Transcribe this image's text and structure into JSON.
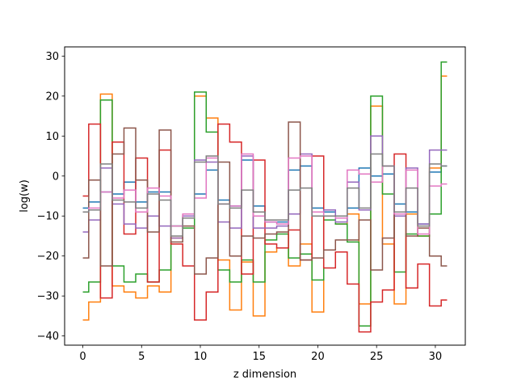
{
  "chart_data": {
    "type": "line",
    "drawstyle": "steps-mid",
    "title": "",
    "xlabel": "z dimension",
    "ylabel": "log(w)",
    "xlim": [
      -1.55,
      32.55
    ],
    "ylim": [
      -42.3,
      32.3
    ],
    "xticks": [
      0,
      5,
      10,
      15,
      20,
      25,
      30
    ],
    "yticks": [
      -40,
      -30,
      -20,
      -10,
      0,
      10,
      20,
      30
    ],
    "grid": false,
    "legend": "none",
    "x": [
      0,
      1,
      2,
      3,
      4,
      5,
      6,
      7,
      8,
      9,
      10,
      11,
      12,
      13,
      14,
      15,
      16,
      17,
      18,
      19,
      20,
      21,
      22,
      23,
      24,
      25,
      26,
      27,
      28,
      29,
      30,
      31
    ],
    "series": [
      {
        "color": "#1f77b4",
        "values": [
          -8,
          -6.5,
          -4,
          -4.5,
          -1.5,
          -6.5,
          -4,
          -4,
          -12.5,
          -10,
          -4.5,
          1.5,
          -6,
          -7.5,
          4,
          -7.5,
          -11.5,
          -11.5,
          1.5,
          2.5,
          -8,
          -9,
          -10.5,
          -8,
          2,
          0,
          0.5,
          -7,
          -9,
          -12,
          1,
          2.5
        ]
      },
      {
        "color": "#ff7f0e",
        "values": [
          -36,
          -31.5,
          20.5,
          -27.5,
          -29,
          -30.5,
          -27.5,
          -29,
          -15.5,
          -10,
          20,
          14.5,
          -21,
          -33.5,
          -21.5,
          -35,
          -19,
          -18,
          -22.5,
          -17,
          -34,
          -10,
          -12,
          -9.5,
          -32,
          17.5,
          -17,
          -32,
          -9.5,
          -15,
          2,
          25
        ]
      },
      {
        "color": "#2ca02c",
        "values": [
          -29,
          -26.5,
          19,
          -22.5,
          -26.5,
          -24.5,
          -26.5,
          -23.5,
          -12.5,
          -13,
          21,
          11,
          -23.5,
          -26.5,
          -21,
          -26.5,
          -16,
          -14.5,
          -20.5,
          -19.5,
          -26,
          -11,
          -12,
          -16.5,
          -37.5,
          20,
          -4.5,
          -24,
          -14.5,
          -15,
          -9.5,
          28.5
        ]
      },
      {
        "color": "#d62728",
        "values": [
          -5,
          13,
          -30.5,
          8.5,
          -14.5,
          4.5,
          -26.5,
          6.5,
          -17,
          -22.5,
          -36,
          -29,
          13,
          8.5,
          -24.5,
          4,
          -17,
          -18,
          -13.5,
          -21,
          5,
          -23,
          -19,
          -27,
          -39,
          -31.5,
          -28.5,
          5.5,
          -28,
          -22,
          -32.5,
          -31
        ]
      },
      {
        "color": "#9467bd",
        "values": [
          -14,
          -11,
          2,
          -7,
          -12,
          -13,
          -10,
          -12.5,
          -15.5,
          -10,
          4,
          3.5,
          -11.5,
          -13,
          5,
          -13,
          -13,
          -12.5,
          -9.5,
          5.5,
          -10,
          -8.5,
          -11.5,
          -1.5,
          -8.5,
          10,
          2.5,
          -10,
          2,
          -12,
          6.5,
          6.5
        ]
      },
      {
        "color": "#8c564b",
        "values": [
          -20.5,
          -1,
          -22.5,
          5.5,
          12,
          -1,
          -14,
          11.5,
          -16.5,
          -12.5,
          -24.5,
          -20.5,
          3.5,
          -20,
          -15,
          -15.5,
          -14.5,
          -14,
          13.5,
          -21,
          -20.5,
          -18.5,
          -16,
          -16,
          -11,
          -23.5,
          -15.5,
          -9.5,
          -15,
          -13,
          -20,
          -22.5
        ]
      },
      {
        "color": "#e377c2",
        "values": [
          -9,
          -8,
          -4,
          -5.5,
          -3.5,
          -9,
          -3,
          -5,
          -12.5,
          -9.5,
          -5.5,
          4.5,
          -7,
          -7.5,
          5.5,
          -10,
          -11.5,
          -12,
          4.5,
          5,
          -9,
          -10,
          -10.5,
          1.5,
          0.5,
          -1.5,
          2.5,
          -9.5,
          1.5,
          -14.5,
          -2.5,
          -2
        ]
      },
      {
        "color": "#7f7f7f",
        "values": [
          -9,
          -8.5,
          3,
          -6,
          -6.5,
          -8,
          -4.5,
          -6,
          -15,
          -10.5,
          3.5,
          5,
          -7,
          -8,
          -3.5,
          -9,
          -11,
          -11,
          -3.5,
          -3,
          -10,
          -10,
          -10,
          -3,
          -8,
          5.5,
          2.5,
          -9,
          -3,
          -12.5,
          3,
          2.5
        ]
      }
    ]
  }
}
